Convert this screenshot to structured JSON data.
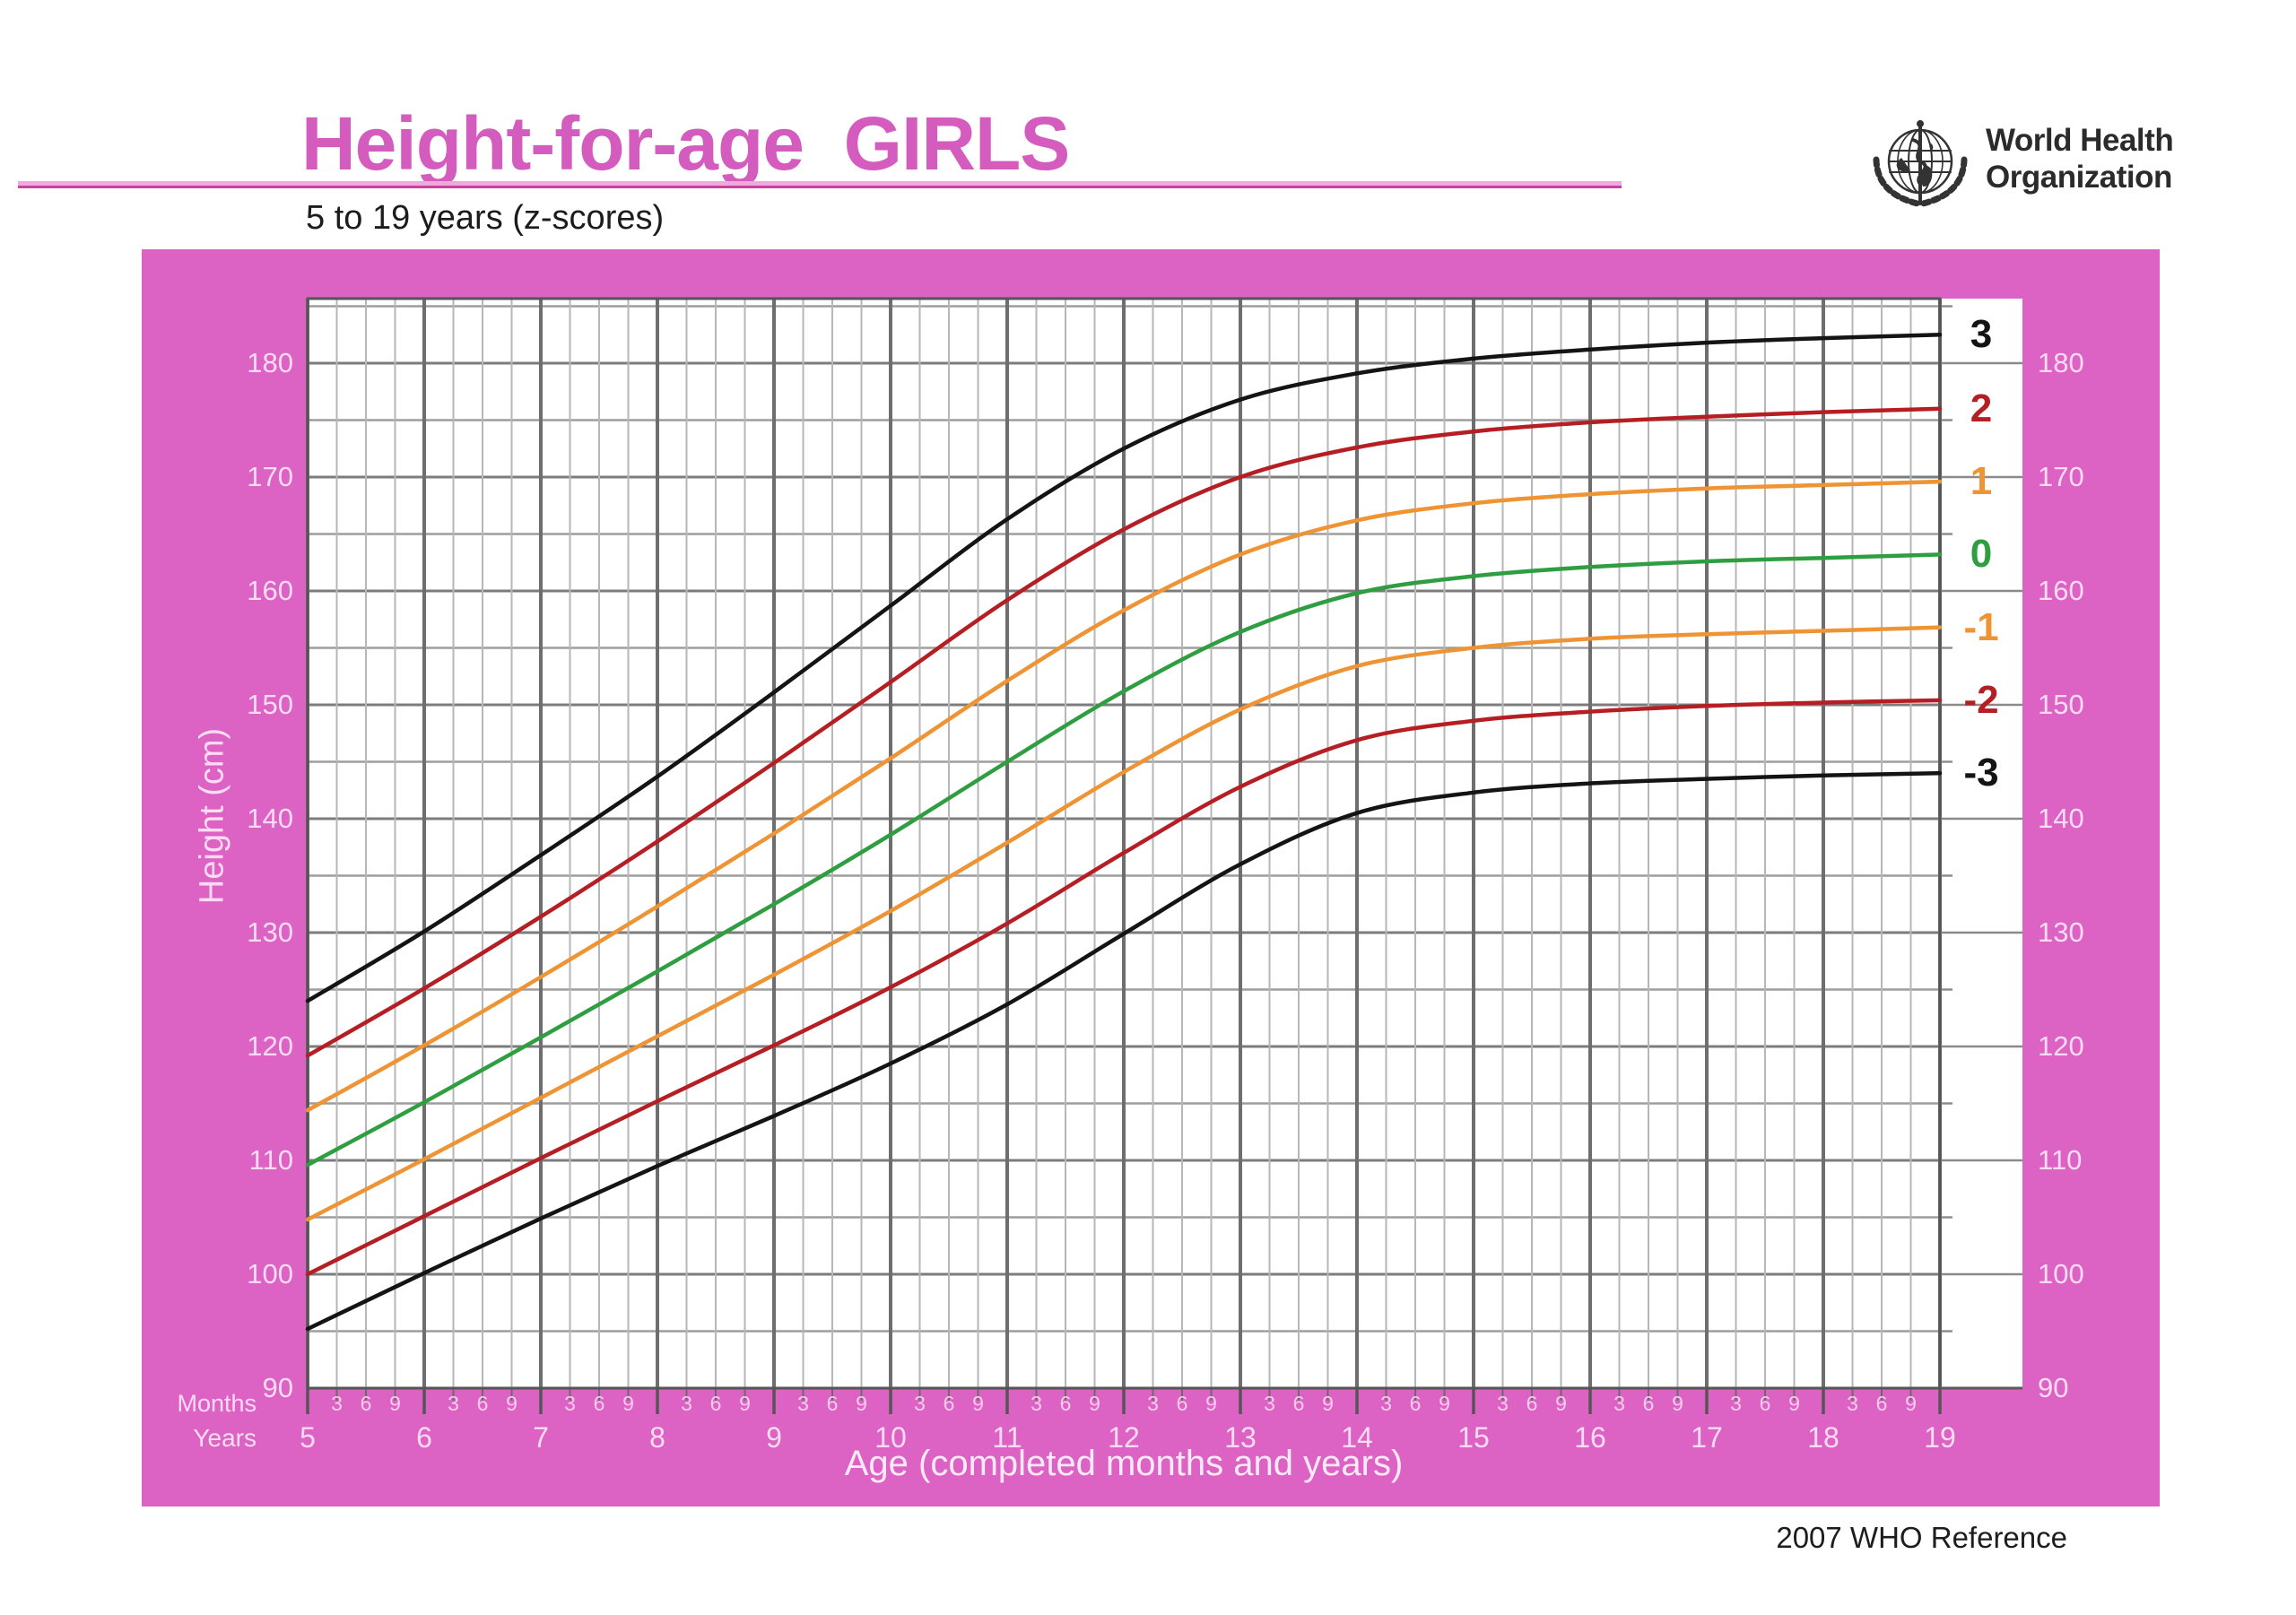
{
  "header": {
    "title": "Height-for-age  GIRLS",
    "subtitle": "5 to 19 years (z-scores)"
  },
  "logo": {
    "name_line1": "World Health",
    "name_line2": "Organization"
  },
  "footer": {
    "reference": "2007 WHO Reference"
  },
  "colors": {
    "frame_pink": "#dc62c4",
    "title_pink": "#d45cbe",
    "z3_black": "#141414",
    "z2_red": "#b51f24",
    "z1_orange": "#ef9434",
    "z0_green": "#2f9e41",
    "axis_label_on_pink": "#fbdcf3"
  },
  "y_axis": {
    "label": "Height (cm)",
    "unit_ticks": [
      "180",
      "170",
      "160",
      "150",
      "140",
      "130",
      "120",
      "110",
      "100"
    ],
    "baseline_tick": "90"
  },
  "x_axis": {
    "label": "Age (completed months and years)",
    "months_row_label": "Months",
    "years_row_label": "Years",
    "month_ticks": [
      "3",
      "6",
      "9"
    ],
    "year_ticks": [
      "5",
      "6",
      "7",
      "8",
      "9",
      "10",
      "11",
      "12",
      "13",
      "14",
      "15",
      "16",
      "17",
      "18",
      "19"
    ]
  },
  "chart_data": {
    "type": "line",
    "title": "Height-for-age GIRLS, 5 to 19 years (z-scores)",
    "xlabel": "Age (completed months and years)",
    "ylabel": "Height (cm)",
    "x": [
      5,
      6,
      7,
      8,
      9,
      10,
      11,
      12,
      13,
      14,
      15,
      16,
      17,
      18,
      19
    ],
    "xlim": [
      5,
      19
    ],
    "ylim": [
      90,
      186
    ],
    "y_gridline_step_cm": 5,
    "x_minor_step_months": 3,
    "grid": true,
    "legend_position": "right-edge-of-curves",
    "series": [
      {
        "name": "3",
        "zscore": 3,
        "color": "#141414",
        "values": [
          124.0,
          130.1,
          136.8,
          143.7,
          151.1,
          158.7,
          166.3,
          172.5,
          176.8,
          179.1,
          180.4,
          181.2,
          181.8,
          182.2,
          182.5
        ]
      },
      {
        "name": "2",
        "zscore": 2,
        "color": "#b51f24",
        "values": [
          119.2,
          125.1,
          131.4,
          138.0,
          144.9,
          152.0,
          159.2,
          165.4,
          170.0,
          172.6,
          174.0,
          174.8,
          175.3,
          175.7,
          176.0
        ]
      },
      {
        "name": "1",
        "zscore": 1,
        "color": "#ef9434",
        "values": [
          114.4,
          120.1,
          126.1,
          132.3,
          138.7,
          145.3,
          152.1,
          158.3,
          163.2,
          166.2,
          167.7,
          168.5,
          169.0,
          169.3,
          169.6
        ]
      },
      {
        "name": "0",
        "zscore": 0,
        "color": "#2f9e41",
        "values": [
          109.6,
          115.1,
          120.8,
          126.6,
          132.5,
          138.6,
          145.0,
          151.2,
          156.4,
          159.8,
          161.3,
          162.1,
          162.6,
          162.9,
          163.2
        ]
      },
      {
        "name": "-1",
        "zscore": -1,
        "color": "#ef9434",
        "values": [
          104.8,
          110.1,
          115.5,
          120.9,
          126.3,
          131.9,
          137.9,
          144.1,
          149.6,
          153.4,
          155.0,
          155.8,
          156.2,
          156.5,
          156.8
        ]
      },
      {
        "name": "-2",
        "zscore": -2,
        "color": "#b51f24",
        "values": [
          100.0,
          105.1,
          110.2,
          115.2,
          120.1,
          125.2,
          130.8,
          137.0,
          142.8,
          146.9,
          148.6,
          149.4,
          149.9,
          150.2,
          150.4
        ]
      },
      {
        "name": "-3",
        "zscore": -3,
        "color": "#141414",
        "values": [
          95.2,
          100.1,
          104.9,
          109.5,
          113.9,
          118.5,
          123.7,
          129.9,
          136.0,
          140.5,
          142.3,
          143.1,
          143.5,
          143.8,
          144.0
        ]
      }
    ]
  }
}
